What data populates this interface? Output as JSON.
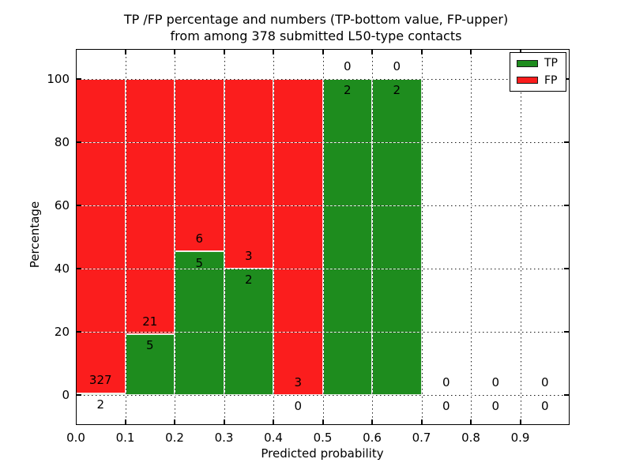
{
  "figure": {
    "title_line1": "TP /FP percentage and numbers (TP-bottom value, FP-upper)",
    "title_line2": "from among 378 submitted L50-type contacts"
  },
  "chart_data": {
    "type": "bar",
    "stacked": true,
    "title": "TP /FP percentage and numbers (TP-bottom value, FP-upper) from among 378 submitted L50-type contacts",
    "xlabel": "Predicted probability",
    "ylabel": "Percentage",
    "xlim": [
      0.0,
      1.0
    ],
    "ylim": [
      -9.5,
      109.5
    ],
    "xticks": [
      "0.0",
      "0.1",
      "0.2",
      "0.3",
      "0.4",
      "0.5",
      "0.6",
      "0.7",
      "0.8",
      "0.9"
    ],
    "yticks": [
      "0",
      "20",
      "40",
      "60",
      "80",
      "100"
    ],
    "grid": "dotted",
    "legend_position": "upper right",
    "legend": [
      {
        "label": "TP",
        "color": "#1e8c1e"
      },
      {
        "label": "FP",
        "color": "#fb1d1d"
      }
    ],
    "colors": {
      "tp": "#1e8c1e",
      "fp": "#fb1d1d"
    },
    "total_contacts": 378,
    "bins": [
      {
        "range": [
          0.0,
          0.1
        ],
        "tp": 2,
        "fp": 327
      },
      {
        "range": [
          0.1,
          0.2
        ],
        "tp": 5,
        "fp": 21
      },
      {
        "range": [
          0.2,
          0.3
        ],
        "tp": 5,
        "fp": 6
      },
      {
        "range": [
          0.3,
          0.4
        ],
        "tp": 2,
        "fp": 3
      },
      {
        "range": [
          0.4,
          0.5
        ],
        "tp": 0,
        "fp": 3
      },
      {
        "range": [
          0.5,
          0.6
        ],
        "tp": 2,
        "fp": 0
      },
      {
        "range": [
          0.6,
          0.7
        ],
        "tp": 2,
        "fp": 0
      },
      {
        "range": [
          0.7,
          0.8
        ],
        "tp": 0,
        "fp": 0
      },
      {
        "range": [
          0.8,
          0.9
        ],
        "tp": 0,
        "fp": 0
      },
      {
        "range": [
          0.9,
          1.0
        ],
        "tp": 0,
        "fp": 0
      }
    ]
  }
}
